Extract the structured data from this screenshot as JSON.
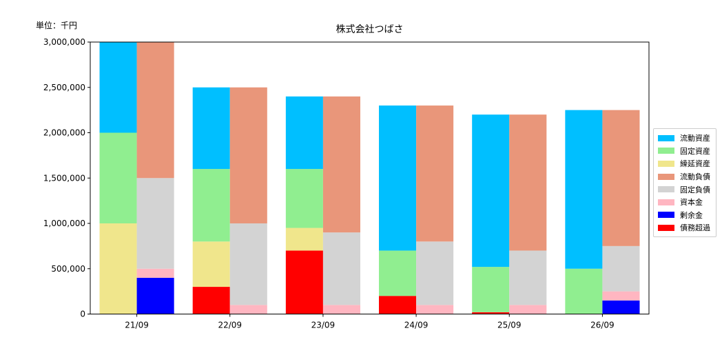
{
  "header": {
    "unit_label": "単位：千円"
  },
  "chart_data": {
    "type": "bar",
    "title": "株式会社つばさ",
    "categories": [
      "21/09",
      "22/09",
      "23/09",
      "24/09",
      "25/09",
      "26/09"
    ],
    "ylim": [
      0,
      3000000
    ],
    "yticks": [
      0,
      500000,
      1000000,
      1500000,
      2000000,
      2500000,
      3000000
    ],
    "ytick_labels": [
      "0",
      "500,000",
      "1,000,000",
      "1,500,000",
      "2,000,000",
      "2,500,000",
      "3,000,000"
    ],
    "grid": false,
    "legend_position": "right",
    "stacked": true,
    "groups": [
      "assets",
      "liabilities_equity"
    ],
    "series": [
      {
        "name": "流動資産",
        "group": "assets",
        "color": "#00bfff",
        "values": [
          1000000,
          900000,
          800000,
          1600000,
          1680000,
          1750000
        ]
      },
      {
        "name": "固定資産",
        "group": "assets",
        "color": "#90ee90",
        "values": [
          1000000,
          800000,
          650000,
          500000,
          500000,
          500000
        ]
      },
      {
        "name": "繰延資産",
        "group": "assets",
        "color": "#f0e68c",
        "values": [
          1000000,
          500000,
          250000,
          0,
          0,
          0
        ]
      },
      {
        "name": "流動負債",
        "group": "liabilities_equity",
        "color": "#e9967a",
        "values": [
          1500000,
          1500000,
          1500000,
          1500000,
          1500000,
          1500000
        ]
      },
      {
        "name": "固定負債",
        "group": "liabilities_equity",
        "color": "#d3d3d3",
        "values": [
          1000000,
          900000,
          800000,
          700000,
          600000,
          500000
        ]
      },
      {
        "name": "資本金",
        "group": "liabilities_equity",
        "color": "#ffb6c1",
        "values": [
          100000,
          100000,
          100000,
          100000,
          100000,
          100000
        ]
      },
      {
        "name": "剰余金",
        "group": "liabilities_equity",
        "color": "#0000ff",
        "values": [
          400000,
          0,
          0,
          0,
          0,
          150000
        ]
      },
      {
        "name": "債務超過",
        "group": "assets",
        "color": "#ff0000",
        "values": [
          0,
          300000,
          700000,
          200000,
          20000,
          0
        ]
      }
    ],
    "stack_order": {
      "assets": [
        "債務超過",
        "繰延資産",
        "固定資産",
        "流動資産"
      ],
      "liabilities_equity": [
        "剰余金",
        "資本金",
        "固定負債",
        "流動負債"
      ]
    }
  }
}
